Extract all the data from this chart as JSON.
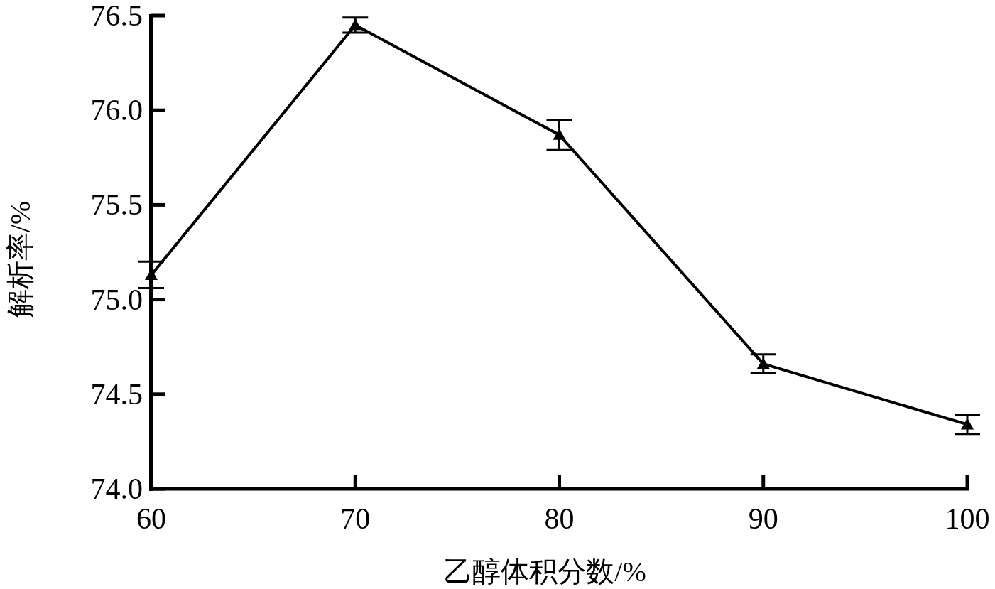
{
  "chart_data": {
    "type": "line",
    "xlabel": "乙醇体积分数/%",
    "ylabel": "解析率/%",
    "x": [
      60,
      70,
      80,
      90,
      100
    ],
    "series": [
      {
        "color": "#000000",
        "values": [
          75.13,
          76.45,
          75.87,
          74.66,
          74.34
        ],
        "errors": [
          0.07,
          0.04,
          0.08,
          0.05,
          0.05
        ]
      }
    ],
    "xlim": [
      60,
      100
    ],
    "xticks": [
      60,
      70,
      80,
      90,
      100
    ],
    "ylim": [
      74.0,
      76.5
    ],
    "yticks": [
      {
        "value": 74.0,
        "label": "74.0"
      },
      {
        "value": 74.5,
        "label": "74.5"
      },
      {
        "value": 75.0,
        "label": "75.0"
      },
      {
        "value": 75.5,
        "label": "75.5"
      },
      {
        "value": 76.0,
        "label": "76.0"
      },
      {
        "value": 76.5,
        "label": "76.5"
      }
    ],
    "marker": "triangle",
    "line_style": "solid"
  }
}
